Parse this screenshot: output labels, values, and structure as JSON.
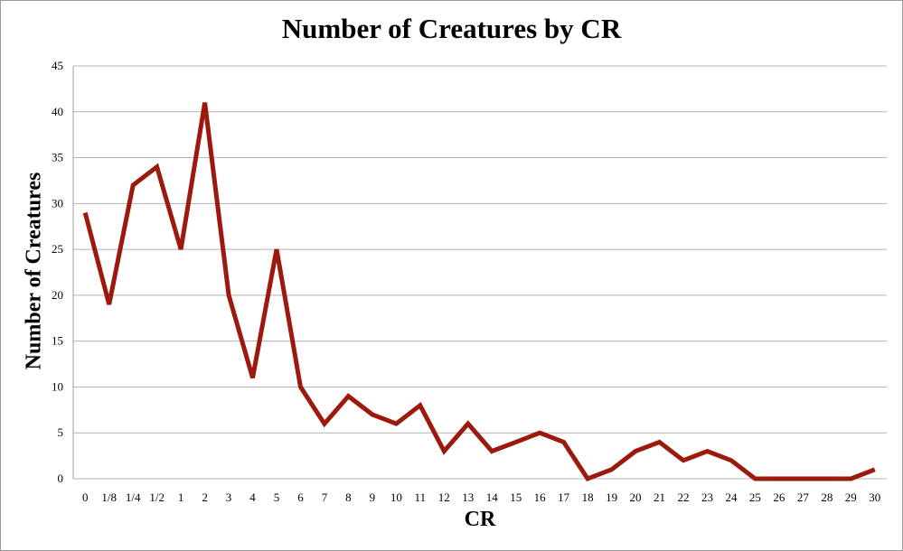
{
  "chart_data": {
    "type": "line",
    "title": "Number of Creatures by CR",
    "xlabel": "CR",
    "ylabel": "Number of Creatures",
    "categories": [
      "0",
      "1/8",
      "1/4",
      "1/2",
      "1",
      "2",
      "3",
      "4",
      "5",
      "6",
      "7",
      "8",
      "9",
      "10",
      "11",
      "12",
      "13",
      "14",
      "15",
      "16",
      "17",
      "18",
      "19",
      "20",
      "21",
      "22",
      "23",
      "24",
      "25",
      "26",
      "27",
      "28",
      "29",
      "30"
    ],
    "series": [
      {
        "name": "Number of Creatures",
        "color": "#9b1a0d",
        "values": [
          29,
          19,
          32,
          34,
          25,
          41,
          20,
          11,
          25,
          10,
          6,
          9,
          7,
          6,
          8,
          3,
          6,
          3,
          4,
          5,
          4,
          0,
          1,
          3,
          4,
          2,
          3,
          2,
          0,
          0,
          0,
          0,
          0,
          1
        ]
      }
    ],
    "ylim": [
      0,
      45
    ],
    "yticks": [
      0,
      5,
      10,
      15,
      20,
      25,
      30,
      35,
      40,
      45
    ],
    "grid": true,
    "legend": "none"
  },
  "style": {
    "line_color": "#9b1a0d",
    "grid_color": "#b3b3b3",
    "axis_color": "#a0a0a0"
  }
}
